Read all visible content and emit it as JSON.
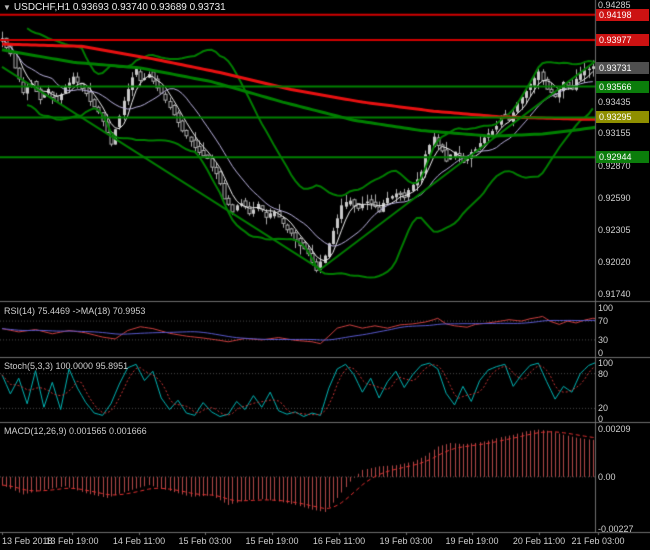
{
  "title": {
    "line": "USDCHF,H1 0.93693 0.93740 0.93689 0.93731"
  },
  "colors": {
    "background": "#000000",
    "bull": "#c9c9c9",
    "bear_border": "#b0b0b0",
    "wick": "#a8a8a8",
    "band": "#007d00",
    "ma_red": "#e81111",
    "ma_green": "#008000",
    "trend": "#007d00",
    "thin_ma1": "#efefef",
    "thin_ma2": "#b8b0dc",
    "rsi": "#cf4040",
    "rsi_ma": "#5a5ad0",
    "stoch": "#00b5b5",
    "stoch_signal": "#c23434",
    "macd_hist": "#b24848",
    "macd_signal": "#e23030",
    "axis_text": "#d2d2d2",
    "separator": "#6f6f6f",
    "level_line": "#4a4a4a"
  },
  "price_axis": {
    "labels": [
      "0.94285",
      "0.93435",
      "0.93155",
      "0.92870",
      "0.92590",
      "0.92305",
      "0.92020",
      "0.91740"
    ],
    "badges": [
      {
        "text": "0.94198",
        "color": "#cc1212"
      },
      {
        "text": "0.93977",
        "color": "#cc1212"
      },
      {
        "text": "0.93731",
        "color": "#4f4f4f"
      },
      {
        "text": "0.93566",
        "color": "#0b7d0b"
      },
      {
        "text": "0.93295",
        "color": "#8f8f00"
      },
      {
        "text": "0.92944",
        "color": "#0b7d0b"
      }
    ]
  },
  "indicators": {
    "rsi": {
      "label": "RSI(14) 75.4469 ->MA(18) 70.9953",
      "axis": [
        "100",
        "70",
        "30",
        "0"
      ]
    },
    "stoch": {
      "label": "Stoch(5,3,3) 100.0000 95.8951",
      "axis": [
        "100",
        "80",
        "20",
        "0"
      ]
    },
    "macd": {
      "label": "MACD(12,26,9) 0.001565 0.001666",
      "axis": [
        "0.00209",
        "0.00",
        "-0.00227"
      ]
    }
  },
  "time_axis": {
    "labels": [
      "13 Feb 2018",
      "13 Feb 19:00",
      "14 Feb 11:00",
      "15 Feb 03:00",
      "15 Feb 19:00",
      "16 Feb 11:00",
      "19 Feb 03:00",
      "19 Feb 19:00",
      "20 Feb 11:00",
      "21 Feb 03:00"
    ]
  },
  "chart_data": [
    {
      "type": "candlestick",
      "title": "USDCHF H1",
      "ohlc_current": {
        "open": 0.93693,
        "high": 0.9374,
        "low": 0.93689,
        "close": 0.93731
      },
      "price_range": [
        0.9169,
        0.9431
      ],
      "bars": 142,
      "path_anchors": [
        [
          0,
          0.9396
        ],
        [
          1,
          0.9399
        ],
        [
          3,
          0.9385
        ],
        [
          4,
          0.9372
        ],
        [
          6,
          0.9352
        ],
        [
          8,
          0.936
        ],
        [
          10,
          0.9346
        ],
        [
          12,
          0.9353
        ],
        [
          14,
          0.9344
        ],
        [
          16,
          0.9356
        ],
        [
          18,
          0.9364
        ],
        [
          20,
          0.9356
        ],
        [
          22,
          0.9345
        ],
        [
          24,
          0.9333
        ],
        [
          26,
          0.9317
        ],
        [
          27,
          0.9307
        ],
        [
          28,
          0.932
        ],
        [
          30,
          0.9344
        ],
        [
          32,
          0.9366
        ],
        [
          33,
          0.9371
        ],
        [
          34,
          0.9362
        ],
        [
          36,
          0.9369
        ],
        [
          38,
          0.9356
        ],
        [
          41,
          0.9339
        ],
        [
          43,
          0.9325
        ],
        [
          45,
          0.9313
        ],
        [
          48,
          0.93
        ],
        [
          50,
          0.9292
        ],
        [
          52,
          0.9281
        ],
        [
          54,
          0.9259
        ],
        [
          56,
          0.9247
        ],
        [
          58,
          0.9255
        ],
        [
          60,
          0.9246
        ],
        [
          62,
          0.9253
        ],
        [
          64,
          0.9241
        ],
        [
          66,
          0.9247
        ],
        [
          68,
          0.9235
        ],
        [
          70,
          0.9227
        ],
        [
          72,
          0.9218
        ],
        [
          74,
          0.9209
        ],
        [
          76,
          0.9196
        ],
        [
          78,
          0.9207
        ],
        [
          80,
          0.9231
        ],
        [
          82,
          0.9251
        ],
        [
          84,
          0.9257
        ],
        [
          86,
          0.9249
        ],
        [
          88,
          0.9257
        ],
        [
          91,
          0.9247
        ],
        [
          93,
          0.9259
        ],
        [
          96,
          0.9263
        ],
        [
          97,
          0.9259
        ],
        [
          99,
          0.9271
        ],
        [
          101,
          0.9281
        ],
        [
          102,
          0.9297
        ],
        [
          104,
          0.9312
        ],
        [
          106,
          0.93
        ],
        [
          107,
          0.9292
        ],
        [
          109,
          0.9299
        ],
        [
          111,
          0.929
        ],
        [
          113,
          0.9298
        ],
        [
          115,
          0.9307
        ],
        [
          117,
          0.9314
        ],
        [
          119,
          0.9322
        ],
        [
          120,
          0.9332
        ],
        [
          122,
          0.9327
        ],
        [
          124,
          0.9342
        ],
        [
          126,
          0.9354
        ],
        [
          128,
          0.9363
        ],
        [
          129,
          0.9369
        ],
        [
          131,
          0.9355
        ],
        [
          133,
          0.9348
        ],
        [
          135,
          0.936
        ],
        [
          137,
          0.9353
        ],
        [
          138,
          0.9364
        ],
        [
          140,
          0.9371
        ],
        [
          142,
          0.93731
        ]
      ],
      "red_ma_anchors": [
        [
          0,
          0.9394
        ],
        [
          19,
          0.9392
        ],
        [
          36,
          0.9381
        ],
        [
          52,
          0.9369
        ],
        [
          69,
          0.9354
        ],
        [
          86,
          0.9343
        ],
        [
          103,
          0.9335
        ],
        [
          119,
          0.933
        ],
        [
          138,
          0.9328
        ],
        [
          142,
          0.9328
        ]
      ],
      "green_ma_anchors": [
        [
          0,
          0.9389
        ],
        [
          17,
          0.9378
        ],
        [
          33,
          0.9373
        ],
        [
          50,
          0.9361
        ],
        [
          67,
          0.9343
        ],
        [
          84,
          0.9327
        ],
        [
          100,
          0.9318
        ],
        [
          117,
          0.9313
        ],
        [
          129,
          0.9315
        ],
        [
          136,
          0.9318
        ],
        [
          142,
          0.9321
        ]
      ],
      "trendlines": [
        {
          "from": [
            0,
            0.9374
          ],
          "to": [
            76,
            0.9196
          ]
        },
        {
          "from": [
            76,
            0.9196
          ],
          "to": [
            142,
            0.938
          ]
        }
      ],
      "horizontal_lines": [
        {
          "price": 0.94198,
          "color": "#d40000",
          "width": 2
        },
        {
          "price": 0.93977,
          "color": "#d40000",
          "width": 2
        },
        {
          "price": 0.93566,
          "color": "#008000",
          "width": 2
        },
        {
          "price": 0.93295,
          "color": "#008000",
          "width": 2
        },
        {
          "price": 0.92944,
          "color": "#008000",
          "width": 2
        }
      ]
    },
    {
      "type": "line",
      "name": "RSI(14)",
      "current": 75.4469,
      "ma_period": 18,
      "ma_current": 70.9953,
      "range": [
        0,
        100
      ],
      "levels": [
        30,
        70
      ],
      "anchors": [
        [
          0,
          54
        ],
        [
          4,
          47
        ],
        [
          8,
          52
        ],
        [
          12,
          43
        ],
        [
          16,
          50
        ],
        [
          20,
          45
        ],
        [
          24,
          36
        ],
        [
          27,
          32
        ],
        [
          30,
          50
        ],
        [
          33,
          58
        ],
        [
          36,
          54
        ],
        [
          40,
          44
        ],
        [
          44,
          38
        ],
        [
          48,
          34
        ],
        [
          52,
          29
        ],
        [
          54,
          26
        ],
        [
          58,
          33
        ],
        [
          62,
          30
        ],
        [
          66,
          35
        ],
        [
          70,
          29
        ],
        [
          74,
          26
        ],
        [
          76,
          22
        ],
        [
          78,
          38
        ],
        [
          80,
          55
        ],
        [
          83,
          62
        ],
        [
          86,
          55
        ],
        [
          89,
          60
        ],
        [
          92,
          55
        ],
        [
          95,
          62
        ],
        [
          98,
          64
        ],
        [
          101,
          68
        ],
        [
          103,
          73
        ],
        [
          104,
          76
        ],
        [
          106,
          64
        ],
        [
          108,
          60
        ],
        [
          111,
          57
        ],
        [
          113,
          63
        ],
        [
          116,
          66
        ],
        [
          119,
          70
        ],
        [
          121,
          73
        ],
        [
          124,
          70
        ],
        [
          126,
          75
        ],
        [
          128,
          78
        ],
        [
          129,
          80
        ],
        [
          131,
          69
        ],
        [
          133,
          63
        ],
        [
          135,
          70
        ],
        [
          137,
          66
        ],
        [
          139,
          72
        ],
        [
          141,
          76
        ],
        [
          142,
          75.4
        ]
      ]
    },
    {
      "type": "line",
      "name": "Stoch(5,3,3)",
      "current": 100.0,
      "signal_current": 95.8951,
      "range": [
        0,
        100
      ],
      "levels": [
        20,
        80
      ],
      "anchors": [
        [
          0,
          78
        ],
        [
          2,
          45
        ],
        [
          4,
          72
        ],
        [
          6,
          28
        ],
        [
          8,
          85
        ],
        [
          10,
          22
        ],
        [
          12,
          65
        ],
        [
          14,
          18
        ],
        [
          16,
          88
        ],
        [
          18,
          55
        ],
        [
          20,
          30
        ],
        [
          22,
          12
        ],
        [
          24,
          8
        ],
        [
          26,
          28
        ],
        [
          28,
          62
        ],
        [
          30,
          90
        ],
        [
          32,
          96
        ],
        [
          34,
          68
        ],
        [
          36,
          84
        ],
        [
          38,
          38
        ],
        [
          40,
          18
        ],
        [
          42,
          34
        ],
        [
          44,
          12
        ],
        [
          46,
          8
        ],
        [
          48,
          30
        ],
        [
          50,
          14
        ],
        [
          52,
          6
        ],
        [
          54,
          10
        ],
        [
          56,
          32
        ],
        [
          58,
          18
        ],
        [
          60,
          42
        ],
        [
          62,
          22
        ],
        [
          64,
          48
        ],
        [
          66,
          16
        ],
        [
          68,
          10
        ],
        [
          70,
          14
        ],
        [
          72,
          6
        ],
        [
          74,
          12
        ],
        [
          76,
          8
        ],
        [
          78,
          55
        ],
        [
          80,
          88
        ],
        [
          82,
          96
        ],
        [
          84,
          78
        ],
        [
          86,
          48
        ],
        [
          88,
          72
        ],
        [
          90,
          38
        ],
        [
          92,
          66
        ],
        [
          94,
          84
        ],
        [
          96,
          56
        ],
        [
          98,
          78
        ],
        [
          100,
          94
        ],
        [
          102,
          98
        ],
        [
          104,
          88
        ],
        [
          106,
          46
        ],
        [
          108,
          26
        ],
        [
          110,
          58
        ],
        [
          112,
          32
        ],
        [
          114,
          68
        ],
        [
          116,
          86
        ],
        [
          118,
          92
        ],
        [
          120,
          96
        ],
        [
          122,
          58
        ],
        [
          124,
          78
        ],
        [
          126,
          94
        ],
        [
          128,
          98
        ],
        [
          130,
          66
        ],
        [
          132,
          36
        ],
        [
          134,
          58
        ],
        [
          136,
          48
        ],
        [
          138,
          80
        ],
        [
          140,
          94
        ],
        [
          142,
          100
        ]
      ]
    },
    {
      "type": "histogram",
      "name": "MACD(12,26,9)",
      "current": 0.001565,
      "signal_current": 0.001666,
      "range": [
        -0.00227,
        0.00209
      ],
      "anchors": [
        [
          0,
          -0.00035
        ],
        [
          5,
          -0.00075
        ],
        [
          10,
          -0.00055
        ],
        [
          15,
          -0.0004
        ],
        [
          20,
          -0.0007
        ],
        [
          25,
          -0.0009
        ],
        [
          30,
          -0.0006
        ],
        [
          35,
          -0.00035
        ],
        [
          40,
          -0.0006
        ],
        [
          45,
          -0.00085
        ],
        [
          50,
          -0.0008
        ],
        [
          54,
          -0.0012
        ],
        [
          58,
          -0.001
        ],
        [
          62,
          -0.00095
        ],
        [
          66,
          -0.00105
        ],
        [
          70,
          -0.0012
        ],
        [
          74,
          -0.0014
        ],
        [
          77,
          -0.0015
        ],
        [
          80,
          -0.0009
        ],
        [
          83,
          -0.0002
        ],
        [
          86,
          0.0003
        ],
        [
          90,
          0.00045
        ],
        [
          94,
          0.0005
        ],
        [
          98,
          0.00065
        ],
        [
          101,
          0.0009
        ],
        [
          104,
          0.0013
        ],
        [
          107,
          0.00145
        ],
        [
          110,
          0.0014
        ],
        [
          113,
          0.00145
        ],
        [
          116,
          0.00155
        ],
        [
          119,
          0.0017
        ],
        [
          122,
          0.0018
        ],
        [
          125,
          0.00195
        ],
        [
          128,
          0.00202
        ],
        [
          131,
          0.00195
        ],
        [
          134,
          0.0018
        ],
        [
          137,
          0.00168
        ],
        [
          140,
          0.0016
        ],
        [
          142,
          0.00157
        ]
      ]
    }
  ]
}
